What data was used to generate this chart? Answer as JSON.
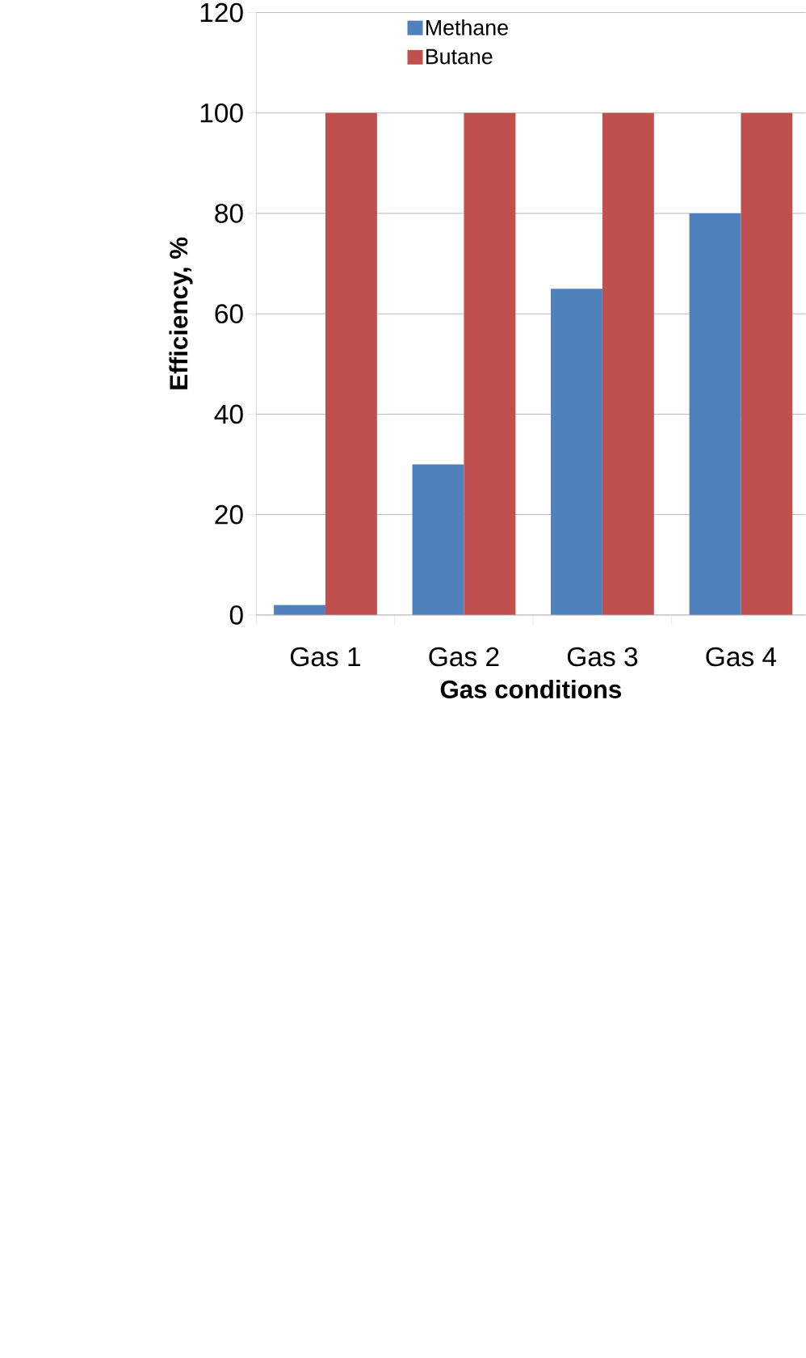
{
  "chart_data": {
    "type": "bar",
    "xlabel": "Gas conditions",
    "ylabel": "Efficiency, %",
    "categories": [
      "Gas 1",
      "Gas 2",
      "Gas 3",
      "Gas 4"
    ],
    "series": [
      {
        "name": "Methane",
        "color": "#4f81bd",
        "values": [
          2,
          30,
          65,
          80
        ]
      },
      {
        "name": "Butane",
        "color": "#c0504d",
        "values": [
          100,
          100,
          100,
          100
        ]
      }
    ],
    "ylim": [
      0,
      120
    ],
    "yticks": [
      0,
      20,
      40,
      60,
      80,
      100,
      120
    ],
    "grid": "y",
    "legend": "top"
  }
}
